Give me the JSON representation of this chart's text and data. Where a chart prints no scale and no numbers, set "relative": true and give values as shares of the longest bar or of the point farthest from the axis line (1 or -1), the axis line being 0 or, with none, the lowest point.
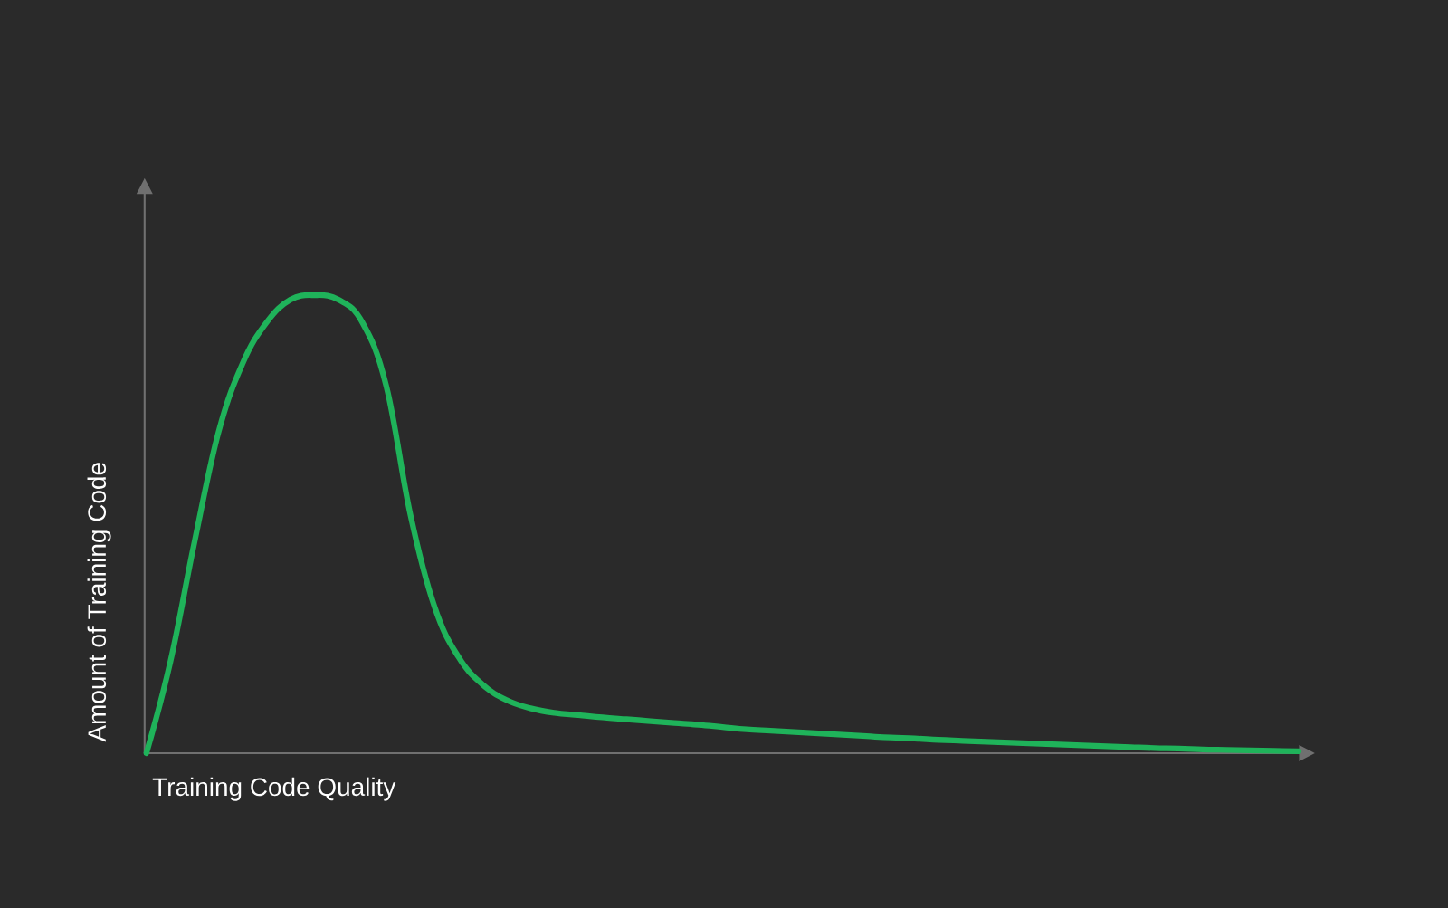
{
  "chart_data": {
    "type": "line",
    "relative": true,
    "xlabel": "Training Code Quality",
    "ylabel": "Amount of Training Code",
    "categories": [
      null,
      null,
      null,
      null,
      null,
      null,
      null,
      null,
      null,
      null,
      null,
      null,
      null,
      null,
      null,
      null,
      null,
      null,
      null,
      null,
      null,
      null,
      null,
      null,
      null,
      null,
      null,
      null,
      null,
      null,
      null,
      null,
      null,
      null,
      null,
      null,
      null,
      null,
      null,
      null,
      null,
      null,
      null,
      null,
      null,
      null,
      null,
      null,
      null
    ],
    "series": [
      {
        "color": "#1fb35a",
        "values": [
          0,
          0.2,
          0.46,
          0.7,
          0.85,
          0.94,
          0.99,
          1.0,
          0.99,
          0.94,
          0.8,
          0.52,
          0.32,
          0.21,
          0.15,
          0.116,
          0.098,
          0.088,
          0.083,
          0.078,
          0.074,
          0.07,
          0.066,
          0.062,
          0.057,
          0.052,
          0.049,
          0.046,
          0.043,
          0.04,
          0.037,
          0.034,
          0.032,
          0.029,
          0.027,
          0.025,
          0.023,
          0.021,
          0.019,
          0.017,
          0.015,
          0.013,
          0.011,
          0.01,
          0.008,
          0.007,
          0.006,
          0.005,
          0.004
        ]
      }
    ]
  }
}
